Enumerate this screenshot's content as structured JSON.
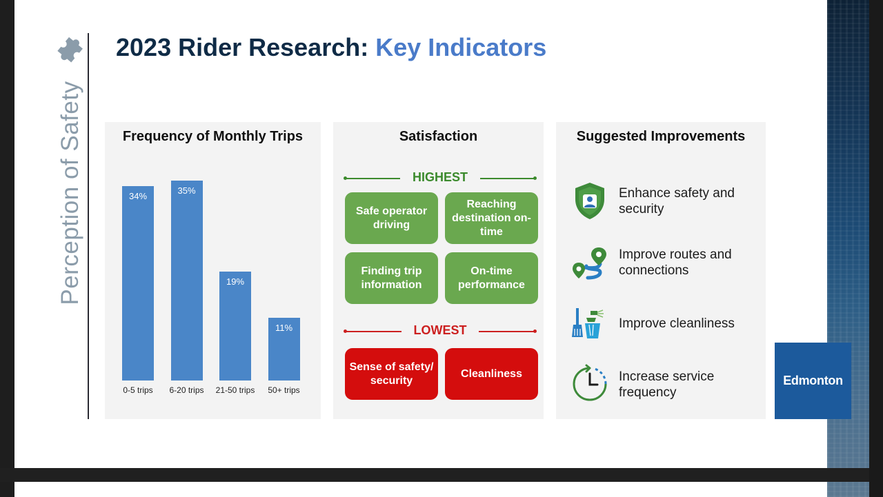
{
  "title": {
    "main": "2023 Rider Research:",
    "accent": "Key Indicators"
  },
  "side_title": "Perception of Safety",
  "frequency": {
    "title": "Frequency of Monthly Trips"
  },
  "chart_data": {
    "type": "bar",
    "title": "Frequency of Monthly Trips",
    "categories": [
      "0-5 trips",
      "6-20 trips",
      "21-50 trips",
      "50+ trips"
    ],
    "values": [
      34,
      35,
      19,
      11
    ],
    "labels": [
      "34%",
      "35%",
      "19%",
      "11%"
    ],
    "ylim": [
      0,
      40
    ],
    "color": "#4a86c8"
  },
  "satisfaction": {
    "title": "Satisfaction",
    "highest_label": "HIGHEST",
    "lowest_label": "LOWEST",
    "highest_items": [
      "Safe operator driving",
      "Reaching destination on-time",
      "Finding trip information",
      "On-time performance"
    ],
    "lowest_items": [
      "Sense of safety/ security",
      "Cleanliness"
    ],
    "colors": {
      "highest": "#6aa84f",
      "lowest": "#d40d0d"
    }
  },
  "improvements": {
    "title": "Suggested Improvements",
    "items": [
      {
        "icon": "shield-person-icon",
        "text": "Enhance safety and security"
      },
      {
        "icon": "route-pins-icon",
        "text": "Improve routes and connections"
      },
      {
        "icon": "cleaning-supplies-icon",
        "text": "Improve cleanliness"
      },
      {
        "icon": "clock-arrow-icon",
        "text": "Increase service frequency"
      }
    ]
  },
  "logo_text": "Edmonton"
}
